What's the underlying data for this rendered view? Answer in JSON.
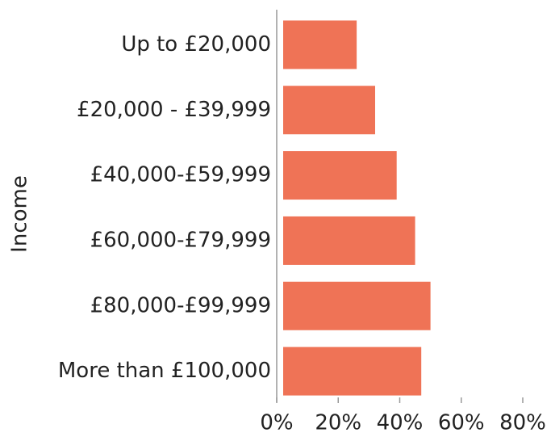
{
  "chart_data": {
    "type": "hbar",
    "ylabel": "Income",
    "categories": [
      "Up to £20,000",
      "£20,000 - £39,999",
      "£40,000-£59,999",
      "£60,000-£79,999",
      "£80,000-£99,999",
      "More than £100,000"
    ],
    "values": [
      26,
      32,
      39,
      45,
      50,
      47
    ],
    "color": "#ef7356",
    "xlim": [
      0,
      80
    ],
    "xticks": [
      {
        "value": 0,
        "label": "0%"
      },
      {
        "value": 20,
        "label": "20%"
      },
      {
        "value": 40,
        "label": "40%"
      },
      {
        "value": 60,
        "label": "60%"
      },
      {
        "value": 80,
        "label": "80%"
      }
    ]
  }
}
